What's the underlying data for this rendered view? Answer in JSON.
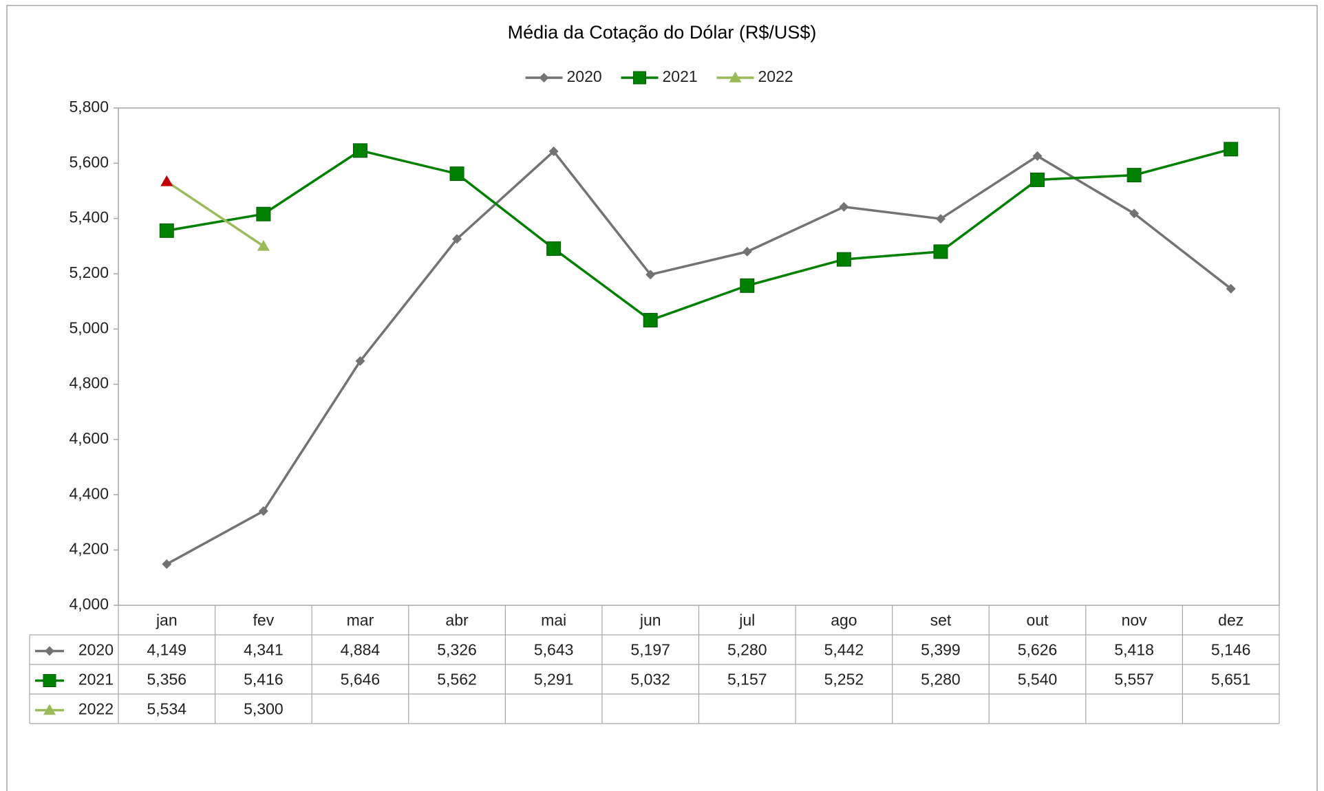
{
  "chart_data": {
    "type": "line",
    "title": "Média da Cotação do Dólar (R$/US$)",
    "categories": [
      "jan",
      "fev",
      "mar",
      "abr",
      "mai",
      "jun",
      "jul",
      "ago",
      "set",
      "out",
      "nov",
      "dez"
    ],
    "series": [
      {
        "name": "2020",
        "color": "#737373",
        "marker": "diamond",
        "values": [
          4.149,
          4.341,
          4.884,
          5.326,
          5.643,
          5.197,
          5.28,
          5.442,
          5.399,
          5.626,
          5.418,
          5.146
        ],
        "value_labels": [
          "4,149",
          "4,341",
          "4,884",
          "5,326",
          "5,643",
          "5,197",
          "5,280",
          "5,442",
          "5,399",
          "5,626",
          "5,418",
          "5,146"
        ]
      },
      {
        "name": "2021",
        "color": "#008000",
        "marker": "square",
        "values": [
          5.356,
          5.416,
          5.646,
          5.562,
          5.291,
          5.032,
          5.157,
          5.252,
          5.28,
          5.54,
          5.557,
          5.651
        ],
        "value_labels": [
          "5,356",
          "5,416",
          "5,646",
          "5,562",
          "5,291",
          "5,032",
          "5,157",
          "5,252",
          "5,280",
          "5,540",
          "5,557",
          "5,651"
        ]
      },
      {
        "name": "2022",
        "color": "#9bbb59",
        "marker": "triangle",
        "marker_colors": [
          "#c00000",
          "#9bbb59",
          null,
          null,
          null,
          null,
          null,
          null,
          null,
          null,
          null,
          null
        ],
        "values": [
          5.534,
          5.3,
          null,
          null,
          null,
          null,
          null,
          null,
          null,
          null,
          null,
          null
        ],
        "value_labels": [
          "5,534",
          "5,300",
          null,
          null,
          null,
          null,
          null,
          null,
          null,
          null,
          null,
          null
        ]
      }
    ],
    "ylim": [
      4.0,
      5.8
    ],
    "yticks": [
      {
        "value": 4.0,
        "label": "4,000"
      },
      {
        "value": 4.2,
        "label": "4,200"
      },
      {
        "value": 4.4,
        "label": "4,400"
      },
      {
        "value": 4.6,
        "label": "4,600"
      },
      {
        "value": 4.8,
        "label": "4,800"
      },
      {
        "value": 5.0,
        "label": "5,000"
      },
      {
        "value": 5.2,
        "label": "5,200"
      },
      {
        "value": 5.4,
        "label": "5,400"
      },
      {
        "value": 5.6,
        "label": "5,600"
      },
      {
        "value": 5.8,
        "label": "5,800"
      }
    ],
    "grid": false,
    "legend": "top",
    "data_table": true
  }
}
